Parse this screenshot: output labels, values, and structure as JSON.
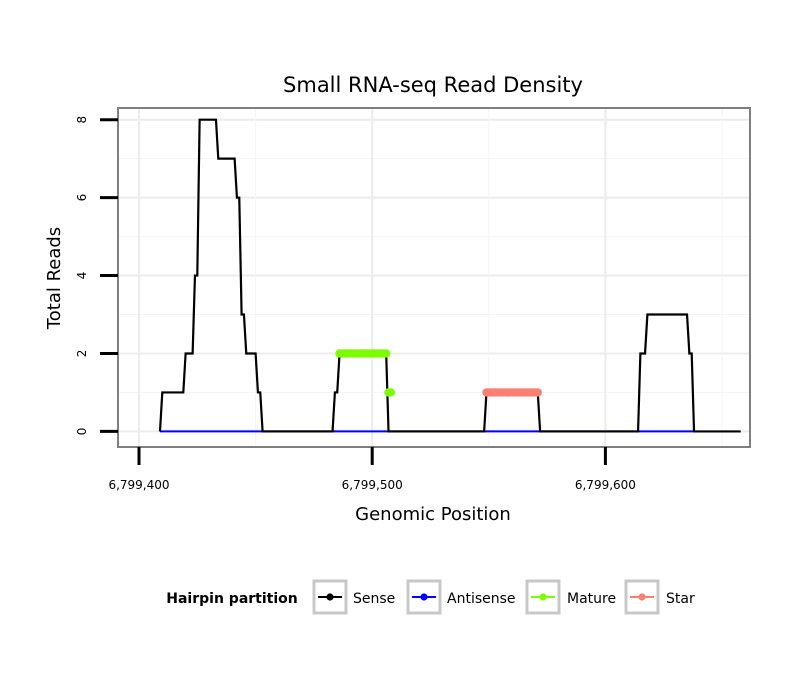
{
  "chart_data": {
    "type": "line",
    "title": "Small RNA-seq Read Density",
    "xlabel": "Genomic Position",
    "ylabel": "Total Reads",
    "xlim": [
      6799391,
      6799662
    ],
    "ylim": [
      -0.4,
      8.3
    ],
    "x_ticks": [
      6799400,
      6799500,
      6799600
    ],
    "x_tick_labels": [
      "6,799,400",
      "6,799,500",
      "6,799,600"
    ],
    "y_ticks": [
      0,
      2,
      4,
      6,
      8
    ],
    "y_tick_labels": [
      "0",
      "2",
      "4",
      "6",
      "8"
    ],
    "legend": {
      "title": "Hairpin partition",
      "position": "bottom",
      "entries": [
        "Sense",
        "Antisense",
        "Mature",
        "Star"
      ]
    },
    "series": [
      {
        "name": "Sense",
        "color": "#000000",
        "points": [
          [
            6799409,
            0
          ],
          [
            6799410,
            1
          ],
          [
            6799419,
            1
          ],
          [
            6799420,
            2
          ],
          [
            6799423,
            2
          ],
          [
            6799424,
            4
          ],
          [
            6799425,
            4
          ],
          [
            6799426,
            8
          ],
          [
            6799433,
            8
          ],
          [
            6799434,
            7
          ],
          [
            6799441,
            7
          ],
          [
            6799442,
            6
          ],
          [
            6799443,
            6
          ],
          [
            6799444,
            3
          ],
          [
            6799445,
            3
          ],
          [
            6799446,
            2
          ],
          [
            6799450,
            2
          ],
          [
            6799451,
            1
          ],
          [
            6799452,
            1
          ],
          [
            6799453,
            0
          ],
          [
            6799483,
            0
          ],
          [
            6799484,
            1
          ],
          [
            6799485,
            1
          ],
          [
            6799486,
            2
          ],
          [
            6799506,
            2
          ],
          [
            6799507,
            0
          ],
          [
            6799548,
            0
          ],
          [
            6799549,
            1
          ],
          [
            6799571,
            1
          ],
          [
            6799572,
            0
          ],
          [
            6799614,
            0
          ],
          [
            6799615,
            2
          ],
          [
            6799617,
            2
          ],
          [
            6799618,
            3
          ],
          [
            6799635,
            3
          ],
          [
            6799636,
            2
          ],
          [
            6799637,
            2
          ],
          [
            6799638,
            0
          ],
          [
            6799658,
            0
          ]
        ]
      },
      {
        "name": "Antisense",
        "color": "#0000ff",
        "points": [
          [
            6799409,
            0
          ],
          [
            6799638,
            0
          ]
        ]
      },
      {
        "name": "Mature",
        "color": "#7cfc00",
        "points": [
          [
            6799486,
            2
          ],
          [
            6799487,
            2
          ],
          [
            6799488,
            2
          ],
          [
            6799489,
            2
          ],
          [
            6799490,
            2
          ],
          [
            6799491,
            2
          ],
          [
            6799492,
            2
          ],
          [
            6799493,
            2
          ],
          [
            6799494,
            2
          ],
          [
            6799495,
            2
          ],
          [
            6799496,
            2
          ],
          [
            6799497,
            2
          ],
          [
            6799498,
            2
          ],
          [
            6799499,
            2
          ],
          [
            6799500,
            2
          ],
          [
            6799501,
            2
          ],
          [
            6799502,
            2
          ],
          [
            6799503,
            2
          ],
          [
            6799504,
            2
          ],
          [
            6799505,
            2
          ],
          [
            6799506,
            2
          ],
          [
            6799507,
            1
          ],
          [
            6799508,
            1
          ]
        ]
      },
      {
        "name": "Star",
        "color": "#fa8072",
        "points": [
          [
            6799549,
            1
          ],
          [
            6799550,
            1
          ],
          [
            6799551,
            1
          ],
          [
            6799552,
            1
          ],
          [
            6799553,
            1
          ],
          [
            6799554,
            1
          ],
          [
            6799555,
            1
          ],
          [
            6799556,
            1
          ],
          [
            6799557,
            1
          ],
          [
            6799558,
            1
          ],
          [
            6799559,
            1
          ],
          [
            6799560,
            1
          ],
          [
            6799561,
            1
          ],
          [
            6799562,
            1
          ],
          [
            6799563,
            1
          ],
          [
            6799564,
            1
          ],
          [
            6799565,
            1
          ],
          [
            6799566,
            1
          ],
          [
            6799567,
            1
          ],
          [
            6799568,
            1
          ],
          [
            6799569,
            1
          ],
          [
            6799570,
            1
          ],
          [
            6799571,
            1
          ]
        ]
      }
    ]
  }
}
